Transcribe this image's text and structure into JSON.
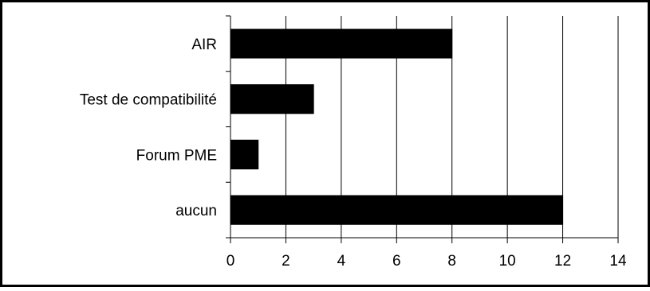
{
  "chart_data": {
    "type": "bar",
    "orientation": "horizontal",
    "categories": [
      "AIR",
      "Test de compatibilité",
      "Forum PME",
      "aucun"
    ],
    "values": [
      8,
      3,
      1,
      12
    ],
    "xlim": [
      0,
      14
    ],
    "xticks": [
      0,
      2,
      4,
      6,
      8,
      10,
      12,
      14
    ],
    "grid": true,
    "legend": "none",
    "bar_color": "#000000",
    "gridline_color": "#000000",
    "border_color": "#000000"
  }
}
